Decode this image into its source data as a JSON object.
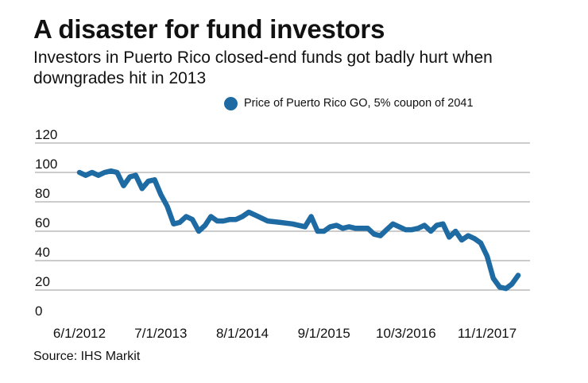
{
  "title": "A disaster for fund investors",
  "subtitle": "Investors in Puerto Rico closed-end funds got badly hurt when downgrades hit in 2013",
  "source": "Source: IHS Markit",
  "colors": {
    "series": "#1e6aa3",
    "grid": "#9a9a9a",
    "text": "#111111"
  },
  "chart_data": {
    "type": "line",
    "title": "A disaster for fund investors",
    "subtitle": "Investors in Puerto Rico closed-end funds got badly hurt when downgrades hit in 2013",
    "xlabel": "",
    "ylabel": "",
    "ylim": [
      0,
      120
    ],
    "yticks": [
      0,
      20,
      40,
      60,
      80,
      100,
      120
    ],
    "xticks": [
      "6/1/2012",
      "7/1/2013",
      "8/1/2014",
      "9/1/2015",
      "10/3/2016",
      "11/1/2017"
    ],
    "grid": true,
    "legend_position": "top-right",
    "series": [
      {
        "name": "Price of Puerto Rico GO, 5% coupon of 2041",
        "x": [
          "2012-06-01",
          "2012-07-01",
          "2012-08-01",
          "2012-09-01",
          "2012-10-01",
          "2012-11-01",
          "2012-12-01",
          "2013-01-01",
          "2013-02-01",
          "2013-03-01",
          "2013-04-01",
          "2013-05-01",
          "2013-06-01",
          "2013-07-01",
          "2013-08-01",
          "2013-09-01",
          "2013-10-01",
          "2013-11-01",
          "2013-12-01",
          "2014-01-01",
          "2014-02-01",
          "2014-03-01",
          "2014-04-01",
          "2014-05-01",
          "2014-06-01",
          "2014-07-01",
          "2014-08-01",
          "2014-09-01",
          "2014-10-01",
          "2014-12-01",
          "2015-02-01",
          "2015-04-01",
          "2015-06-01",
          "2015-07-01",
          "2015-08-01",
          "2015-09-01",
          "2015-10-01",
          "2015-11-01",
          "2015-12-01",
          "2016-01-01",
          "2016-02-01",
          "2016-04-01",
          "2016-05-01",
          "2016-06-01",
          "2016-07-01",
          "2016-08-01",
          "2016-10-01",
          "2016-11-01",
          "2016-12-01",
          "2017-01-01",
          "2017-02-01",
          "2017-03-01",
          "2017-04-01",
          "2017-05-01",
          "2017-06-01",
          "2017-07-01",
          "2017-08-01",
          "2017-09-01",
          "2017-10-01",
          "2017-11-01",
          "2017-12-01",
          "2018-01-01",
          "2018-02-01"
        ],
        "y": [
          100,
          98,
          100,
          98,
          100,
          101,
          100,
          91,
          97,
          98,
          89,
          94,
          95,
          85,
          77,
          65,
          66,
          70,
          68,
          60,
          64,
          70,
          67,
          67,
          68,
          68,
          70,
          73,
          71,
          67,
          66,
          65,
          63,
          70,
          60,
          60,
          63,
          64,
          62,
          63,
          62,
          62,
          58,
          57,
          61,
          65,
          61,
          61,
          62,
          64,
          60,
          64,
          65,
          56,
          60,
          54,
          57,
          55,
          52,
          43,
          28,
          22,
          21
        ]
      }
    ],
    "annotations": [
      {
        "x": "2018-03-01",
        "y": 24
      },
      {
        "x": "2018-04-01",
        "y": 30
      }
    ]
  }
}
